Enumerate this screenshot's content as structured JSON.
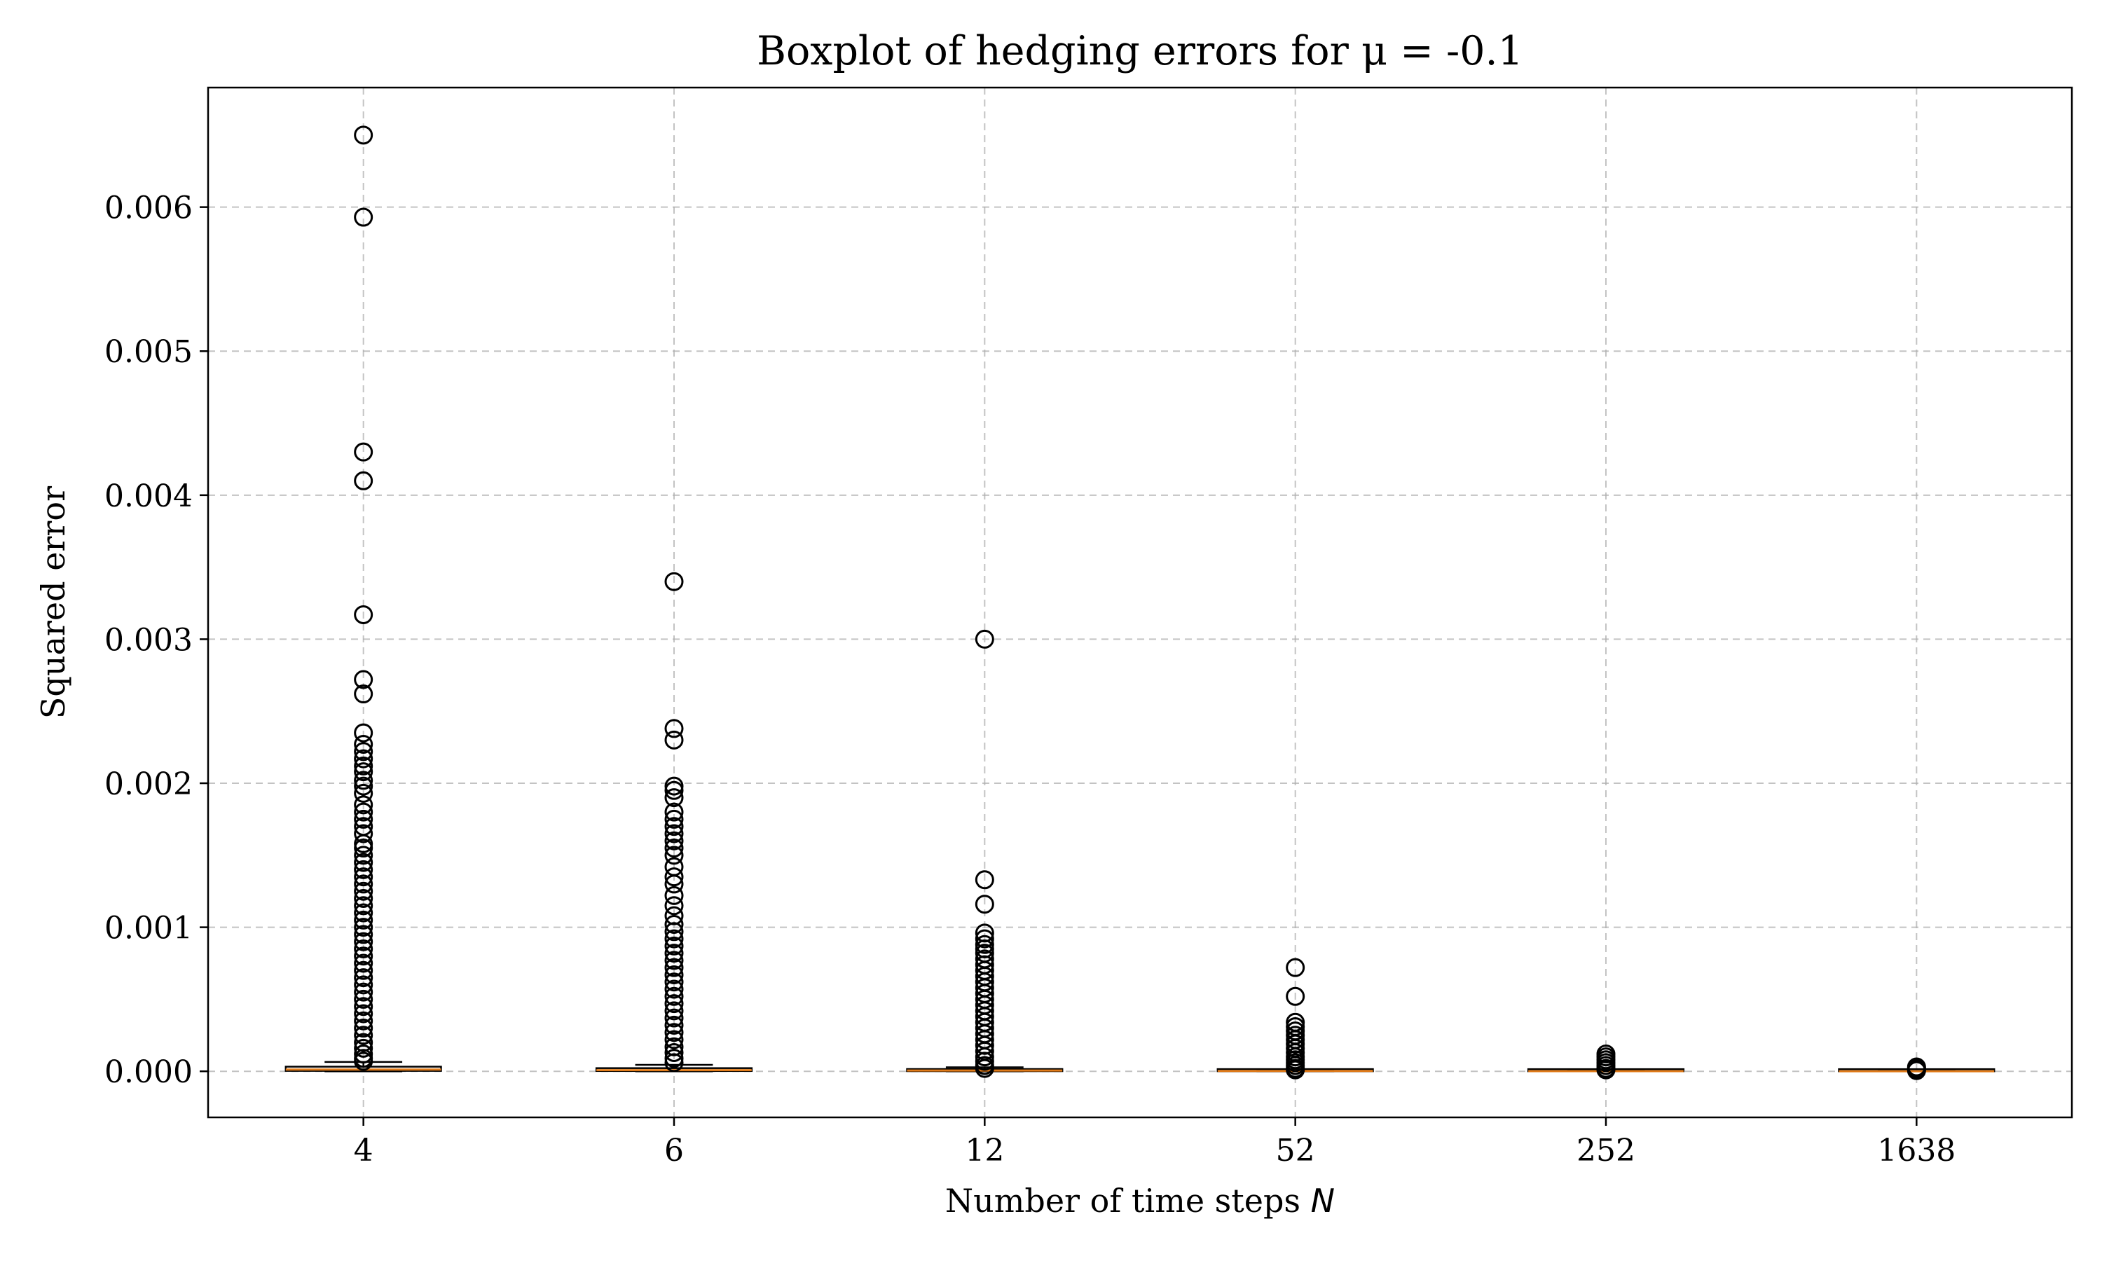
{
  "chart_data": {
    "type": "boxplot",
    "title": "Boxplot of hedging errors for μ = -0.1",
    "xlabel_text": "Number of time steps ",
    "xlabel_var": "N",
    "ylabel": "Squared error",
    "ylim": [
      -0.00032,
      0.00683
    ],
    "yticks": [
      0.0,
      0.001,
      0.002,
      0.003,
      0.004,
      0.005,
      0.006
    ],
    "ytick_labels": [
      "0.000",
      "0.001",
      "0.002",
      "0.003",
      "0.004",
      "0.005",
      "0.006"
    ],
    "categories": [
      "4",
      "6",
      "12",
      "52",
      "252",
      "1638"
    ],
    "grid": true,
    "median_color": "#e07b1a",
    "boxes": [
      {
        "category": "4",
        "q1": 3e-06,
        "median": 1.2e-05,
        "q3": 3.2e-05,
        "whisker_low": 0.0,
        "whisker_high": 6.5e-05,
        "outliers": [
          0.0065,
          0.00593,
          0.0043,
          0.0041,
          0.00317,
          0.00272,
          0.00262,
          0.00235,
          0.00227,
          0.00222,
          0.00217,
          0.00212,
          0.00208,
          0.00202,
          0.00198,
          0.00193,
          0.00185,
          0.0018,
          0.00175,
          0.0017,
          0.00165,
          0.00158,
          0.00155,
          0.0015,
          0.00145,
          0.0014,
          0.00135,
          0.0013,
          0.00125,
          0.0012,
          0.00115,
          0.0011,
          0.00105,
          0.001,
          0.00095,
          0.0009,
          0.00085,
          0.0008,
          0.00075,
          0.0007,
          0.00065,
          0.0006,
          0.00055,
          0.0005,
          0.00045,
          0.0004,
          0.00035,
          0.0003,
          0.00025,
          0.0002,
          0.00016,
          0.00012,
          9e-05,
          7e-05
        ]
      },
      {
        "category": "6",
        "q1": 2e-06,
        "median": 8e-06,
        "q3": 2.2e-05,
        "whisker_low": 0.0,
        "whisker_high": 4.5e-05,
        "outliers": [
          0.0034,
          0.00238,
          0.0023,
          0.00198,
          0.00195,
          0.0019,
          0.0018,
          0.00175,
          0.0017,
          0.00165,
          0.0016,
          0.00155,
          0.0015,
          0.00142,
          0.00135,
          0.0013,
          0.00122,
          0.00115,
          0.00108,
          0.00102,
          0.00097,
          0.00092,
          0.00087,
          0.00082,
          0.00077,
          0.00072,
          0.00067,
          0.00062,
          0.00057,
          0.00052,
          0.00047,
          0.00042,
          0.00037,
          0.00032,
          0.00027,
          0.00022,
          0.00017,
          0.00013,
          9e-05,
          6e-05
        ]
      },
      {
        "category": "12",
        "q1": 1e-06,
        "median": 5e-06,
        "q3": 1.3e-05,
        "whisker_low": 0.0,
        "whisker_high": 2.8e-05,
        "outliers": [
          0.003,
          0.00133,
          0.00116,
          0.00096,
          0.00092,
          0.00088,
          0.00085,
          0.00082,
          0.00078,
          0.00074,
          0.0007,
          0.00066,
          0.00062,
          0.00058,
          0.00054,
          0.0005,
          0.00046,
          0.00042,
          0.00038,
          0.00034,
          0.0003,
          0.00026,
          0.00022,
          0.00018,
          0.00014,
          0.0001,
          7e-05,
          4e-05,
          2e-05
        ]
      },
      {
        "category": "52",
        "q1": 5e-07,
        "median": 2e-06,
        "q3": 6e-06,
        "whisker_low": 0.0,
        "whisker_high": 1.3e-05,
        "outliers": [
          0.00072,
          0.00052,
          0.00034,
          0.00031,
          0.00028,
          0.00025,
          0.00022,
          0.00019,
          0.00016,
          0.00013,
          0.0001,
          8e-05,
          6e-05,
          4e-05,
          2e-05,
          1e-05
        ]
      },
      {
        "category": "252",
        "q1": 2e-07,
        "median": 8e-07,
        "q3": 2e-06,
        "whisker_low": 0.0,
        "whisker_high": 5e-06,
        "outliers": [
          0.00012,
          0.0001,
          8e-05,
          6e-05,
          4e-05,
          2e-05,
          1e-05
        ]
      },
      {
        "category": "1638",
        "q1": 1e-07,
        "median": 3e-07,
        "q3": 8e-07,
        "whisker_low": 0.0,
        "whisker_high": 2e-06,
        "outliers": [
          3e-05,
          2e-05,
          1e-05,
          5e-06
        ]
      }
    ]
  }
}
